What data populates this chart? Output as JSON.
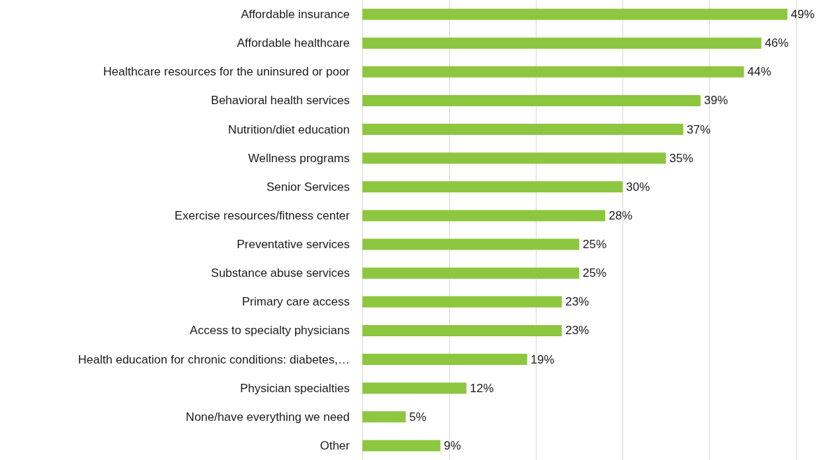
{
  "chart_data": {
    "type": "bar",
    "orientation": "horizontal",
    "categories": [
      "Affordable insurance",
      "Affordable healthcare",
      "Healthcare resources for the uninsured or poor",
      "Behavioral health services",
      "Nutrition/diet education",
      "Wellness programs",
      "Senior Services",
      "Exercise resources/fitness center",
      "Preventative services",
      "Substance abuse services",
      "Primary care access",
      "Access to specialty physicians",
      "Health education for chronic conditions: diabetes,…",
      "Physician specialties",
      "None/have everything we need",
      "Other"
    ],
    "values": [
      49,
      46,
      44,
      39,
      37,
      35,
      30,
      28,
      25,
      25,
      23,
      23,
      19,
      12,
      5,
      9
    ],
    "value_labels": [
      "49%",
      "46%",
      "44%",
      "39%",
      "37%",
      "35%",
      "30%",
      "28%",
      "25%",
      "25%",
      "23%",
      "23%",
      "19%",
      "12%",
      "5%",
      "9%"
    ],
    "color": "#8dc63f",
    "xlim": [
      0,
      50
    ],
    "xticks": [
      {
        "value": 0,
        "label": null
      },
      {
        "value": 10,
        "label": null
      },
      {
        "value": 20,
        "label": null
      },
      {
        "value": 30,
        "label": null
      },
      {
        "value": 40,
        "label": null
      },
      {
        "value": 50,
        "label": null
      }
    ],
    "grid": "x",
    "tick_labels": "y"
  }
}
